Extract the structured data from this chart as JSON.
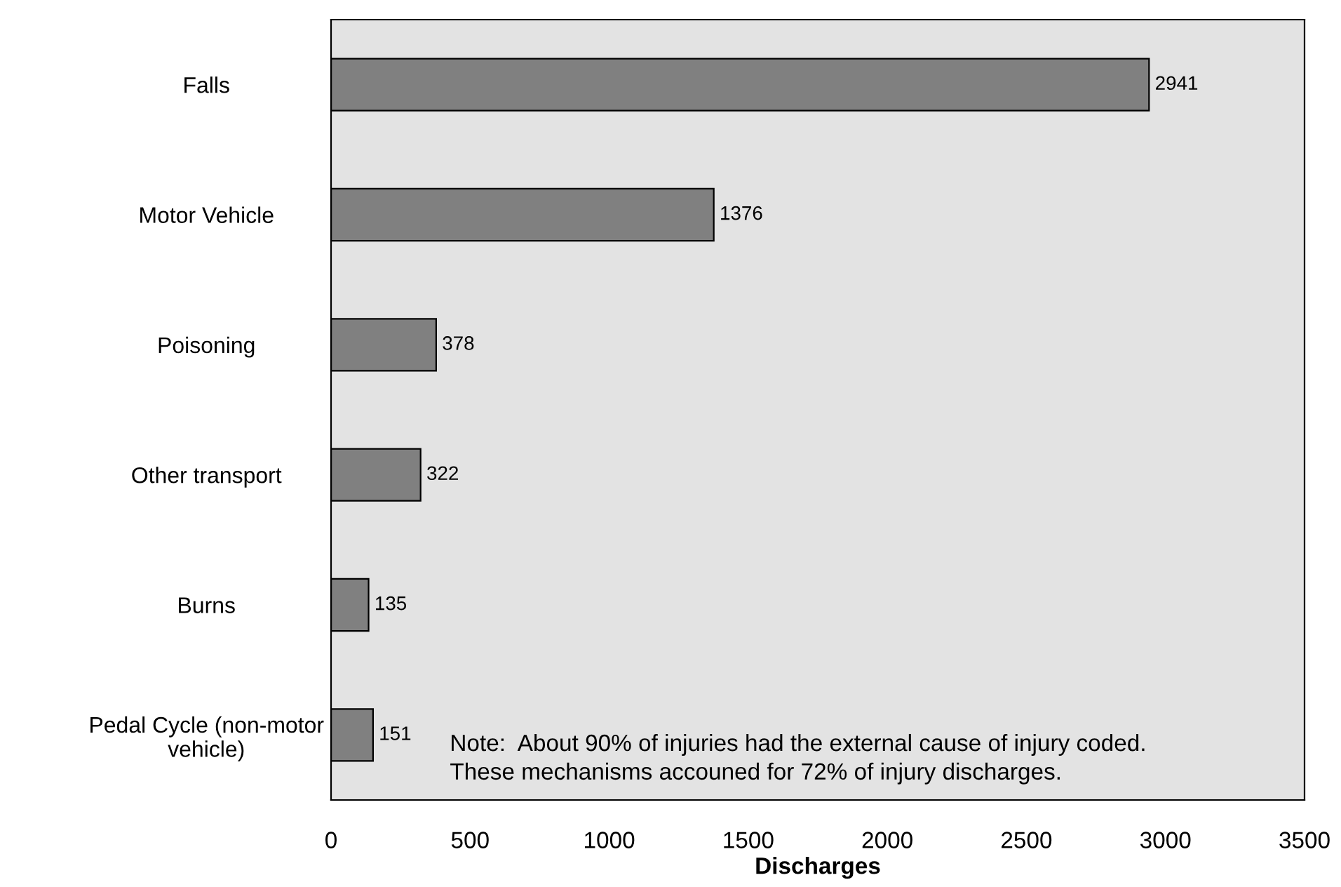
{
  "chart_data": {
    "type": "bar",
    "orientation": "horizontal",
    "categories": [
      "Falls",
      "Motor Vehicle",
      "Poisoning",
      "Other transport",
      "Burns",
      "Pedal Cycle (non-motor\nvehicle)"
    ],
    "values": [
      2941,
      1376,
      378,
      322,
      135,
      151
    ],
    "color": "#808080",
    "xlabel": "Discharges",
    "xlim": [
      0,
      3500
    ],
    "xticks": [
      0,
      500,
      1000,
      1500,
      2000,
      2500,
      3000,
      3500
    ],
    "data_labels": true,
    "grid": false,
    "annotations": [
      "Note:  About 90% of injuries had the external cause of injury coded.\nThese mechanisms accouned for 72% of injury discharges."
    ]
  }
}
